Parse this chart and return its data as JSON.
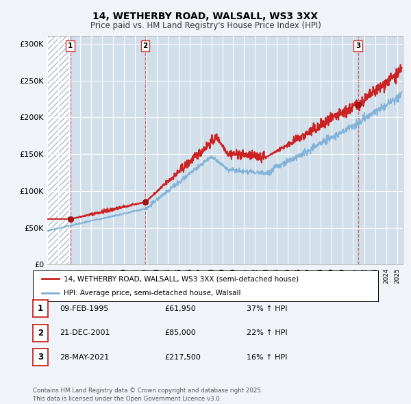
{
  "title": "14, WETHERBY ROAD, WALSALL, WS3 3XX",
  "subtitle": "Price paid vs. HM Land Registry's House Price Index (HPI)",
  "ylim": [
    0,
    310000
  ],
  "yticks": [
    0,
    50000,
    100000,
    150000,
    200000,
    250000,
    300000
  ],
  "ytick_labels": [
    "£0",
    "£50K",
    "£100K",
    "£150K",
    "£200K",
    "£250K",
    "£300K"
  ],
  "price_line_color": "#cc2222",
  "hpi_line_color": "#7aaed6",
  "background_color": "#f0f4f8",
  "plot_bg_color": "#dde8f0",
  "hatch_color": "#c0c8d0",
  "sale_dates": [
    1995.11,
    2001.97,
    2021.41
  ],
  "sale_values": [
    61950,
    85000,
    217500
  ],
  "sale_labels": [
    "1",
    "2",
    "3"
  ],
  "legend_entries": [
    "14, WETHERBY ROAD, WALSALL, WS3 3XX (semi-detached house)",
    "HPI: Average price, semi-detached house, Walsall"
  ],
  "table_rows": [
    {
      "num": "1",
      "date": "09-FEB-1995",
      "price": "£61,950",
      "change": "37% ↑ HPI"
    },
    {
      "num": "2",
      "date": "21-DEC-2001",
      "price": "£85,000",
      "change": "22% ↑ HPI"
    },
    {
      "num": "3",
      "date": "28-MAY-2021",
      "price": "£217,500",
      "change": "16% ↑ HPI"
    }
  ],
  "footer": "Contains HM Land Registry data © Crown copyright and database right 2025.\nThis data is licensed under the Open Government Licence v3.0.",
  "xmin": 1993,
  "xmax": 2025.5
}
